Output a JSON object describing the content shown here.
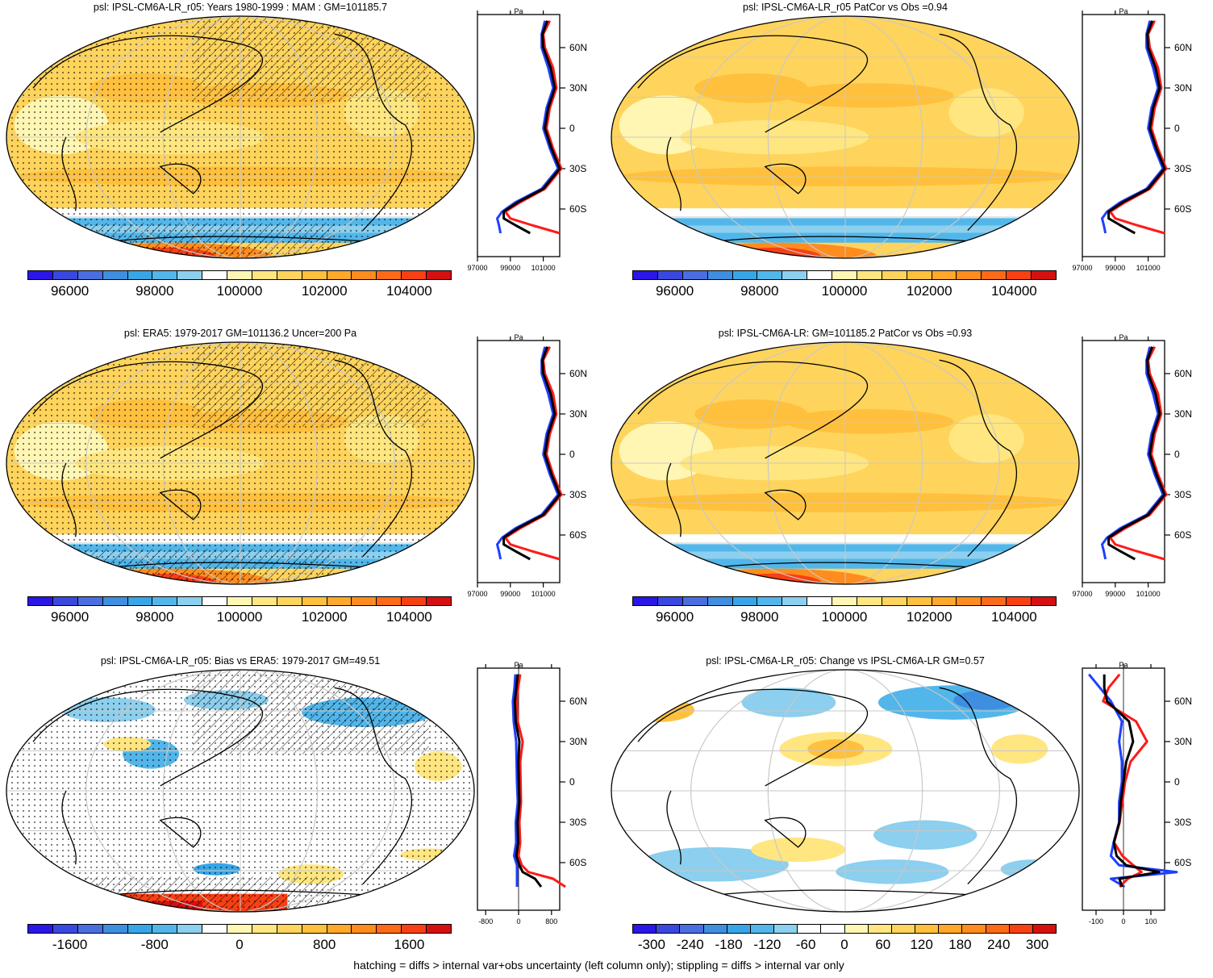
{
  "figure": {
    "footer": "hatching = diffs > internal var+obs uncertainty (left column only); stippling = diffs > internal var only",
    "zonal_unit": "Pa",
    "lat_ticks": [
      "60N",
      "30N",
      "0",
      "30S",
      "60S"
    ],
    "abs_colors": [
      "#2a16e6",
      "#3a48e0",
      "#4a6ee0",
      "#3f8fe0",
      "#37a6e8",
      "#52b6ea",
      "#8ccfee",
      "#ffffff",
      "#fff6b4",
      "#ffe680",
      "#ffd45c",
      "#ffc03e",
      "#ffa82a",
      "#ff8c1e",
      "#ff6a18",
      "#f84014",
      "#d61010"
    ],
    "bias_colors": [
      "#2a16e6",
      "#3a48e0",
      "#4a6ee0",
      "#3f8fe0",
      "#37a6e8",
      "#52b6ea",
      "#8ccfee",
      "#ffffff",
      "#fff6b4",
      "#ffe680",
      "#ffd45c",
      "#ffc03e",
      "#ffa82a",
      "#ff8c1e",
      "#ff6a18",
      "#f84014",
      "#d61010"
    ],
    "change_colors": [
      "#2a16e6",
      "#3a48e0",
      "#4a6ee0",
      "#3f8fe0",
      "#37a6e8",
      "#52b6ea",
      "#8ccfee",
      "#ffffff",
      "#ffffff",
      "#fff6b4",
      "#ffe680",
      "#ffd45c",
      "#ffc03e",
      "#ffa82a",
      "#ff8c1e",
      "#ff6a18",
      "#f84014",
      "#d61010"
    ]
  },
  "panels": [
    {
      "title": "psl: IPSL-CM6A-LR_r05: Years 1980-1999 : MAM : GM=101185.7",
      "kind": "abs",
      "cbar_labels": [
        "96000",
        "98000",
        "100000",
        "102000",
        "104000"
      ],
      "zonal_ticks": [
        "97000",
        "99000",
        "101000"
      ],
      "hatch": true,
      "stipple": true
    },
    {
      "title": "psl: IPSL-CM6A-LR_r05 PatCor vs Obs =0.94",
      "kind": "abs",
      "cbar_labels": [
        "96000",
        "98000",
        "100000",
        "102000",
        "104000"
      ],
      "zonal_ticks": [
        "97000",
        "99000",
        "101000"
      ],
      "hatch": false,
      "stipple": false
    },
    {
      "title": "psl: ERA5: 1979-2017 GM=101136.2 Uncer=200 Pa",
      "kind": "abs",
      "cbar_labels": [
        "96000",
        "98000",
        "100000",
        "102000",
        "104000"
      ],
      "zonal_ticks": [
        "97000",
        "99000",
        "101000"
      ],
      "hatch": true,
      "stipple": true
    },
    {
      "title": "psl: IPSL-CM6A-LR: GM=101185.2 PatCor vs Obs =0.93",
      "kind": "abs",
      "cbar_labels": [
        "96000",
        "98000",
        "100000",
        "102000",
        "104000"
      ],
      "zonal_ticks": [
        "97000",
        "99000",
        "101000"
      ],
      "hatch": false,
      "stipple": false
    },
    {
      "title": "psl: IPSL-CM6A-LR_r05: Bias vs ERA5: 1979-2017 GM=49.51",
      "kind": "bias",
      "cbar_labels": [
        "-1600",
        "-800",
        "0",
        "800",
        "1600"
      ],
      "zonal_ticks": [
        "-800",
        "0",
        "800"
      ],
      "hatch": true,
      "stipple": true
    },
    {
      "title": "psl: IPSL-CM6A-LR_r05: Change vs IPSL-CM6A-LR GM=0.57",
      "kind": "change",
      "cbar_labels": [
        "-300",
        "-240",
        "-180",
        "-120",
        "-60",
        "0",
        "60",
        "120",
        "180",
        "240",
        "300"
      ],
      "zonal_ticks": [
        "-100",
        "0",
        "100"
      ],
      "hatch": false,
      "stipple": false
    }
  ],
  "chart_data": [
    {
      "type": "map",
      "title": "psl: IPSL-CM6A-LR_r05: Years 1980-1999 : MAM : GM=101185.7",
      "colorbar": {
        "min": 95000,
        "max": 105000,
        "ticks": [
          96000,
          98000,
          100000,
          102000,
          104000
        ]
      },
      "zonal_profile": {
        "lat": [
          80,
          70,
          60,
          45,
          30,
          15,
          0,
          -15,
          -30,
          -45,
          -55,
          -62,
          -67,
          -72,
          -78
        ],
        "model": [
          101300,
          100900,
          101000,
          101500,
          101700,
          101300,
          101100,
          101500,
          102000,
          101000,
          99500,
          98600,
          98900,
          100200,
          101900
        ],
        "obs": [
          101200,
          101000,
          101000,
          101400,
          101700,
          101300,
          101100,
          101500,
          102000,
          101000,
          99400,
          98600,
          98300,
          98400,
          98500
        ],
        "xlim": [
          97000,
          102000
        ],
        "xticks": [
          97000,
          99000,
          101000
        ]
      }
    },
    {
      "type": "map",
      "title": "psl: IPSL-CM6A-LR_r05 PatCor vs Obs =0.94",
      "colorbar": {
        "min": 95000,
        "max": 105000,
        "ticks": [
          96000,
          98000,
          100000,
          102000,
          104000
        ]
      },
      "zonal_profile": {
        "lat": [
          80,
          70,
          60,
          45,
          30,
          15,
          0,
          -15,
          -30,
          -45,
          -55,
          -62,
          -67,
          -72,
          -78
        ],
        "model": [
          101300,
          100900,
          101000,
          101500,
          101700,
          101300,
          101100,
          101500,
          102000,
          101000,
          99500,
          98600,
          98900,
          100200,
          101900
        ],
        "obs": [
          101200,
          101000,
          101000,
          101400,
          101700,
          101300,
          101100,
          101500,
          102000,
          101000,
          99400,
          98600,
          98300,
          98400,
          98500
        ],
        "xlim": [
          97000,
          102000
        ],
        "xticks": [
          97000,
          99000,
          101000
        ]
      }
    },
    {
      "type": "map",
      "title": "psl: ERA5: 1979-2017 GM=101136.2 Uncer=200 Pa",
      "colorbar": {
        "min": 95000,
        "max": 105000,
        "ticks": [
          96000,
          98000,
          100000,
          102000,
          104000
        ]
      },
      "zonal_profile": {
        "lat": [
          80,
          70,
          60,
          45,
          30,
          15,
          0,
          -15,
          -30,
          -45,
          -55,
          -62,
          -67,
          -72,
          -78
        ],
        "model": [
          101300,
          100900,
          101000,
          101500,
          101700,
          101300,
          101100,
          101500,
          102000,
          101000,
          99500,
          98600,
          98900,
          100200,
          101900
        ],
        "obs": [
          101200,
          101000,
          101000,
          101400,
          101700,
          101300,
          101100,
          101500,
          102000,
          101000,
          99400,
          98600,
          98300,
          98400,
          98500
        ],
        "xlim": [
          97000,
          102000
        ],
        "xticks": [
          97000,
          99000,
          101000
        ]
      }
    },
    {
      "type": "map",
      "title": "psl: IPSL-CM6A-LR: GM=101185.2 PatCor vs Obs =0.93",
      "colorbar": {
        "min": 95000,
        "max": 105000,
        "ticks": [
          96000,
          98000,
          100000,
          102000,
          104000
        ]
      },
      "zonal_profile": {
        "lat": [
          80,
          70,
          60,
          45,
          30,
          15,
          0,
          -15,
          -30,
          -45,
          -55,
          -62,
          -67,
          -72,
          -78
        ],
        "model": [
          101300,
          100900,
          101000,
          101500,
          101700,
          101300,
          101100,
          101500,
          102000,
          101000,
          99500,
          98600,
          98900,
          100200,
          101900
        ],
        "obs": [
          101200,
          101000,
          101000,
          101400,
          101700,
          101300,
          101100,
          101500,
          102000,
          101000,
          99400,
          98600,
          98300,
          98400,
          98500
        ],
        "xlim": [
          97000,
          102000
        ],
        "xticks": [
          97000,
          99000,
          101000
        ]
      }
    },
    {
      "type": "map",
      "title": "psl: IPSL-CM6A-LR_r05: Bias vs ERA5: 1979-2017 GM=49.51",
      "colorbar": {
        "min": -2000,
        "max": 2000,
        "ticks": [
          -1600,
          -800,
          0,
          800,
          1600
        ]
      },
      "zonal_profile": {
        "lat": [
          80,
          70,
          60,
          45,
          30,
          15,
          0,
          -15,
          -30,
          -45,
          -55,
          -62,
          -67,
          -72,
          -78
        ],
        "model": [
          0,
          -50,
          -80,
          -60,
          60,
          0,
          10,
          20,
          -20,
          0,
          -40,
          40,
          200,
          800,
          1100
        ],
        "obs": [
          -40,
          -60,
          -100,
          -80,
          -20,
          -10,
          0,
          20,
          -30,
          -20,
          -70,
          0,
          0,
          0,
          0
        ],
        "xlim": [
          -1000,
          1000
        ],
        "xticks": [
          -800,
          0,
          800
        ]
      }
    },
    {
      "type": "map",
      "title": "psl: IPSL-CM6A-LR_r05: Change vs IPSL-CM6A-LR GM=0.57",
      "colorbar": {
        "min": -330,
        "max": 330,
        "ticks": [
          -300,
          -240,
          -180,
          -120,
          -60,
          0,
          60,
          120,
          180,
          240,
          300
        ]
      },
      "zonal_profile": {
        "lat": [
          80,
          70,
          60,
          45,
          30,
          15,
          0,
          -15,
          -30,
          -45,
          -55,
          -62,
          -67,
          -72,
          -78
        ],
        "model": [
          -20,
          -60,
          -80,
          40,
          80,
          20,
          0,
          -10,
          -20,
          -40,
          -10,
          30,
          60,
          10,
          -20
        ],
        "obs": [
          -120,
          -80,
          -40,
          0,
          -10,
          0,
          0,
          -10,
          -10,
          -30,
          -40,
          -10,
          200,
          -40,
          10
        ],
        "xlim": [
          -150,
          150
        ],
        "xticks": [
          -100,
          0,
          100
        ]
      }
    }
  ]
}
